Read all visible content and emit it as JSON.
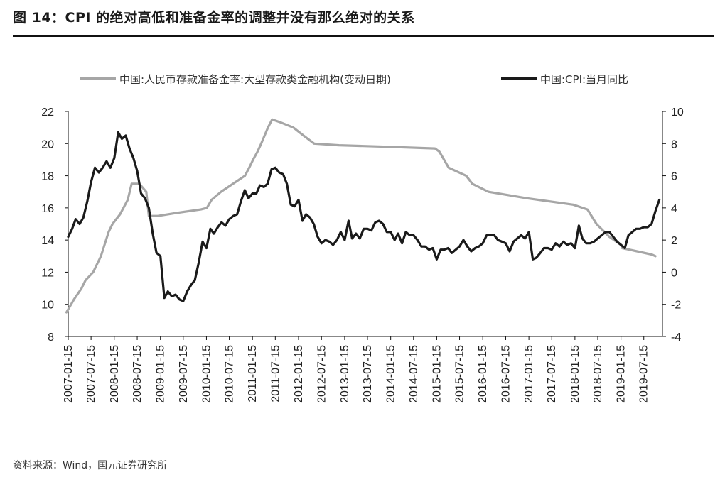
{
  "title": "图 14：CPI 的绝对高低和准备金率的调整并没有那么绝对的关系",
  "source": "资料来源：Wind，国元证券研究所",
  "colors": {
    "rrr": "#a6a6a6",
    "cpi": "#1a1a1a",
    "axis": "#111111"
  },
  "chart_data": {
    "type": "line",
    "xlabel": "",
    "ylabel_left": "",
    "ylabel_right": "",
    "x_ticks": [
      "2007-01-15",
      "2007-07-15",
      "2008-01-15",
      "2008-07-15",
      "2009-01-15",
      "2009-07-15",
      "2010-01-15",
      "2010-07-15",
      "2011-01-15",
      "2011-07-15",
      "2012-01-15",
      "2012-07-15",
      "2013-01-15",
      "2013-07-15",
      "2014-01-15",
      "2014-07-15",
      "2015-01-15",
      "2015-07-15",
      "2016-01-15",
      "2016-07-15",
      "2017-01-15",
      "2017-07-15",
      "2018-01-15",
      "2018-07-15",
      "2019-01-15",
      "2019-07-15"
    ],
    "y_left": {
      "range": [
        8,
        22
      ],
      "ticks": [
        "8",
        "10",
        "12",
        "14",
        "16",
        "18",
        "20",
        "22"
      ]
    },
    "y_right": {
      "range": [
        -4,
        10
      ],
      "ticks": [
        "-4",
        "-2",
        "0",
        "2",
        "4",
        "6",
        "8",
        "10"
      ]
    },
    "legend_position": "top",
    "series": [
      {
        "name": "中国:人民币存款准备金率:大型存款类金融机构(变动日期)",
        "axis": "left",
        "x": [
          "2007-01-01",
          "2007-03-01",
          "2007-05-01",
          "2007-06-01",
          "2007-08-01",
          "2007-10-01",
          "2007-12-01",
          "2008-01-01",
          "2008-03-01",
          "2008-05-01",
          "2008-06-01",
          "2008-08-01",
          "2008-09-25",
          "2008-10-15",
          "2008-12-25",
          "2009-06-01",
          "2009-12-01",
          "2010-01-18",
          "2010-02-25",
          "2010-05-10",
          "2010-11-16",
          "2010-12-20",
          "2011-01-20",
          "2011-02-24",
          "2011-03-25",
          "2011-04-21",
          "2011-05-18",
          "2011-06-20",
          "2011-09-01",
          "2011-12-05",
          "2012-02-24",
          "2012-05-18",
          "2012-12-01",
          "2014-01-01",
          "2015-01-01",
          "2015-02-05",
          "2015-04-20",
          "2015-09-06",
          "2015-10-24",
          "2016-03-01",
          "2017-01-01",
          "2018-01-01",
          "2018-04-25",
          "2018-07-05",
          "2018-10-15",
          "2019-01-15",
          "2019-01-25",
          "2019-09-16",
          "2019-10-15"
        ],
        "y": [
          9.5,
          10.3,
          11.0,
          11.5,
          12.0,
          13.0,
          14.5,
          15.0,
          15.6,
          16.5,
          17.5,
          17.5,
          17.0,
          15.5,
          15.5,
          15.7,
          15.9,
          16.0,
          16.5,
          17.0,
          18.0,
          18.5,
          19.0,
          19.5,
          20.0,
          20.5,
          21.0,
          21.5,
          21.3,
          21.0,
          20.5,
          20.0,
          19.9,
          19.8,
          19.7,
          19.5,
          18.5,
          18.0,
          17.5,
          17.0,
          16.6,
          16.2,
          15.9,
          15.0,
          14.2,
          13.7,
          13.5,
          13.1,
          13.0
        ]
      },
      {
        "name": "中国:CPI:当月同比",
        "axis": "right",
        "x": [
          "2007-01-15",
          "2007-02-15",
          "2007-03-15",
          "2007-04-15",
          "2007-05-15",
          "2007-06-15",
          "2007-07-15",
          "2007-08-15",
          "2007-09-15",
          "2007-10-15",
          "2007-11-15",
          "2007-12-15",
          "2008-01-15",
          "2008-02-15",
          "2008-03-15",
          "2008-04-15",
          "2008-05-15",
          "2008-06-15",
          "2008-07-15",
          "2008-08-15",
          "2008-09-15",
          "2008-10-15",
          "2008-11-15",
          "2008-12-15",
          "2009-01-15",
          "2009-02-15",
          "2009-03-15",
          "2009-04-15",
          "2009-05-15",
          "2009-06-15",
          "2009-07-15",
          "2009-08-15",
          "2009-09-15",
          "2009-10-15",
          "2009-11-15",
          "2009-12-15",
          "2010-01-15",
          "2010-02-15",
          "2010-03-15",
          "2010-04-15",
          "2010-05-15",
          "2010-06-15",
          "2010-07-15",
          "2010-08-15",
          "2010-09-15",
          "2010-10-15",
          "2010-11-15",
          "2010-12-15",
          "2011-01-15",
          "2011-02-15",
          "2011-03-15",
          "2011-04-15",
          "2011-05-15",
          "2011-06-15",
          "2011-07-15",
          "2011-08-15",
          "2011-09-15",
          "2011-10-15",
          "2011-11-15",
          "2011-12-15",
          "2012-01-15",
          "2012-02-15",
          "2012-03-15",
          "2012-04-15",
          "2012-05-15",
          "2012-06-15",
          "2012-07-15",
          "2012-08-15",
          "2012-09-15",
          "2012-10-15",
          "2012-11-15",
          "2012-12-15",
          "2013-01-15",
          "2013-02-15",
          "2013-03-15",
          "2013-04-15",
          "2013-05-15",
          "2013-06-15",
          "2013-07-15",
          "2013-08-15",
          "2013-09-15",
          "2013-10-15",
          "2013-11-15",
          "2013-12-15",
          "2014-01-15",
          "2014-02-15",
          "2014-03-15",
          "2014-04-15",
          "2014-05-15",
          "2014-06-15",
          "2014-07-15",
          "2014-08-15",
          "2014-09-15",
          "2014-10-15",
          "2014-11-15",
          "2014-12-15",
          "2015-01-15",
          "2015-02-15",
          "2015-03-15",
          "2015-04-15",
          "2015-05-15",
          "2015-06-15",
          "2015-07-15",
          "2015-08-15",
          "2015-09-15",
          "2015-10-15",
          "2015-11-15",
          "2015-12-15",
          "2016-01-15",
          "2016-02-15",
          "2016-03-15",
          "2016-04-15",
          "2016-05-15",
          "2016-06-15",
          "2016-07-15",
          "2016-08-15",
          "2016-09-15",
          "2016-10-15",
          "2016-11-15",
          "2016-12-15",
          "2017-01-15",
          "2017-02-15",
          "2017-03-15",
          "2017-04-15",
          "2017-05-15",
          "2017-06-15",
          "2017-07-15",
          "2017-08-15",
          "2017-09-15",
          "2017-10-15",
          "2017-11-15",
          "2017-12-15",
          "2018-01-15",
          "2018-02-15",
          "2018-03-15",
          "2018-04-15",
          "2018-05-15",
          "2018-06-15",
          "2018-07-15",
          "2018-08-15",
          "2018-09-15",
          "2018-10-15",
          "2018-11-15",
          "2018-12-15",
          "2019-01-15",
          "2019-02-15",
          "2019-03-15",
          "2019-04-15",
          "2019-05-15",
          "2019-06-15",
          "2019-07-15",
          "2019-08-15",
          "2019-09-15",
          "2019-10-15",
          "2019-11-15"
        ],
        "y": [
          2.2,
          2.7,
          3.3,
          3.0,
          3.4,
          4.4,
          5.6,
          6.5,
          6.2,
          6.5,
          6.9,
          6.5,
          7.1,
          8.7,
          8.3,
          8.5,
          7.7,
          7.1,
          6.3,
          4.9,
          4.6,
          4.0,
          2.4,
          1.2,
          1.0,
          -1.6,
          -1.2,
          -1.5,
          -1.4,
          -1.7,
          -1.8,
          -1.2,
          -0.8,
          -0.5,
          0.6,
          1.9,
          1.5,
          2.7,
          2.4,
          2.8,
          3.1,
          2.9,
          3.3,
          3.5,
          3.6,
          4.4,
          5.1,
          4.6,
          4.9,
          4.9,
          5.4,
          5.3,
          5.5,
          6.4,
          6.5,
          6.2,
          6.1,
          5.5,
          4.2,
          4.1,
          4.5,
          3.2,
          3.6,
          3.4,
          3.0,
          2.2,
          1.8,
          2.0,
          1.9,
          1.7,
          2.0,
          2.5,
          2.0,
          3.2,
          2.1,
          2.4,
          2.1,
          2.7,
          2.7,
          2.6,
          3.1,
          3.2,
          3.0,
          2.5,
          2.5,
          2.0,
          2.4,
          1.8,
          2.5,
          2.3,
          2.3,
          2.0,
          1.6,
          1.6,
          1.4,
          1.5,
          0.8,
          1.4,
          1.4,
          1.5,
          1.2,
          1.4,
          1.6,
          2.0,
          1.6,
          1.3,
          1.5,
          1.6,
          1.8,
          2.3,
          2.3,
          2.3,
          2.0,
          1.9,
          1.8,
          1.3,
          1.9,
          2.1,
          2.3,
          2.1,
          2.5,
          0.8,
          0.9,
          1.2,
          1.5,
          1.5,
          1.4,
          1.8,
          1.6,
          1.9,
          1.7,
          1.8,
          1.5,
          2.9,
          2.1,
          1.8,
          1.8,
          1.9,
          2.1,
          2.3,
          2.5,
          2.5,
          2.2,
          1.9,
          1.7,
          1.5,
          2.3,
          2.5,
          2.7,
          2.7,
          2.8,
          2.8,
          3.0,
          3.8,
          4.5
        ]
      }
    ]
  }
}
